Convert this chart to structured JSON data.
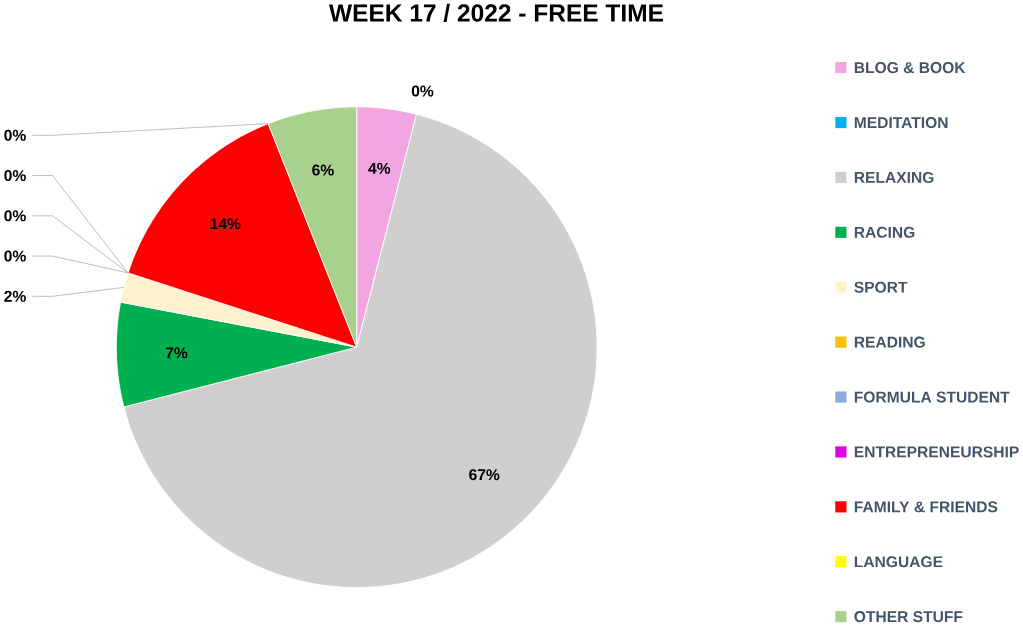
{
  "chart_data": {
    "type": "pie",
    "title": "WEEK 17 / 2022 - FREE TIME",
    "categories": [
      "BLOG & BOOK",
      "MEDITATION",
      "RELAXING",
      "RACING",
      "SPORT",
      "READING",
      "FORMULA STUDENT",
      "ENTREPRENEURSHIP",
      "FAMILY & FRIENDS",
      "LANGUAGE",
      "OTHER STUFF"
    ],
    "values": [
      4,
      0,
      67,
      7,
      2,
      0,
      0,
      0,
      14,
      0,
      6
    ],
    "value_labels": [
      "4%",
      "0%",
      "67%",
      "7%",
      "2%",
      "0%",
      "0%",
      "0%",
      "14%",
      "0%",
      "6%"
    ],
    "colors": [
      "#f1a6e2",
      "#00b0f0",
      "#d0cece",
      "#00b050",
      "#fff2cc",
      "#ffc000",
      "#8eaadb",
      "#e100e1",
      "#ff0000",
      "#ffff00",
      "#a9d18e"
    ],
    "legend": "right"
  }
}
